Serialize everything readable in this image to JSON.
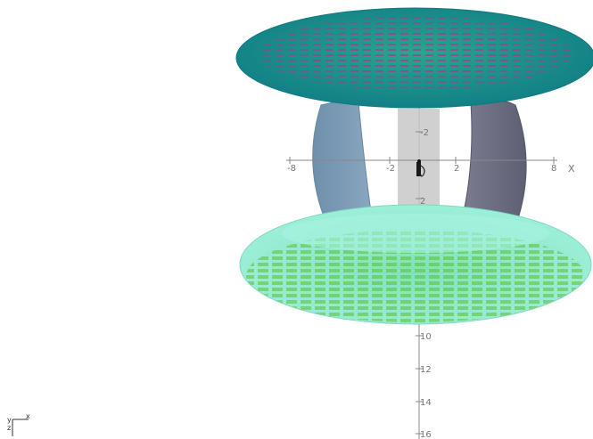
{
  "axes": {
    "x": {
      "name": "X",
      "ticks": [
        "-8",
        "-2",
        "2",
        "8"
      ]
    },
    "y": {
      "ticks": [
        "-2",
        "2",
        "10",
        "12",
        "14",
        "16"
      ]
    }
  },
  "triad": {
    "x_label": "x",
    "y_label": "y",
    "z_label": "z"
  },
  "colors": {
    "top_disk": "#1e9a8c",
    "top_disk_pattern": "#b0358f",
    "left_arc": "#7b98b4",
    "right_arc": "#6b6d80",
    "center_plate": "#c8c8c8",
    "bottom_disk": "#7ee8c8",
    "bottom_disk_pattern": "#6cc640",
    "axis": "#888888"
  }
}
